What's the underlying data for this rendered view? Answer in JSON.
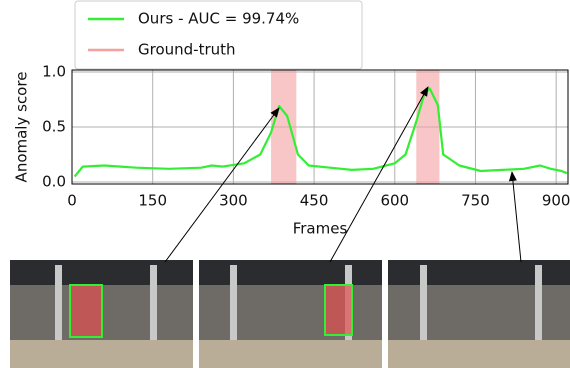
{
  "chart_data": {
    "type": "line",
    "xlabel": "Frames",
    "ylabel": "Anomaly score",
    "xlim": [
      0,
      922
    ],
    "ylim": [
      0,
      1
    ],
    "xticks": [
      0,
      150,
      300,
      450,
      600,
      750,
      900
    ],
    "yticks": [
      {
        "value": 0,
        "label": "0.0"
      },
      {
        "value": 0.5,
        "label": "0.5"
      },
      {
        "value": 1,
        "label": "1.0"
      }
    ],
    "grid": true,
    "series": [
      {
        "name": "Ours - AUC = 99.74%",
        "color": "#33ee33",
        "x": [
          5,
          20,
          60,
          120,
          180,
          240,
          260,
          280,
          320,
          350,
          370,
          385,
          400,
          420,
          440,
          480,
          520,
          560,
          600,
          620,
          640,
          655,
          665,
          680,
          690,
          720,
          760,
          800,
          840,
          870,
          890,
          910,
          920
        ],
        "values": [
          0.05,
          0.14,
          0.15,
          0.13,
          0.12,
          0.13,
          0.15,
          0.14,
          0.17,
          0.25,
          0.45,
          0.69,
          0.6,
          0.25,
          0.15,
          0.13,
          0.11,
          0.12,
          0.17,
          0.25,
          0.55,
          0.8,
          0.85,
          0.7,
          0.25,
          0.15,
          0.1,
          0.11,
          0.12,
          0.15,
          0.12,
          0.1,
          0.08
        ]
      },
      {
        "name": "Ground-truth",
        "color": "#f4a0a0",
        "spans": [
          [
            370,
            417
          ],
          [
            640,
            683
          ]
        ]
      }
    ]
  }
}
